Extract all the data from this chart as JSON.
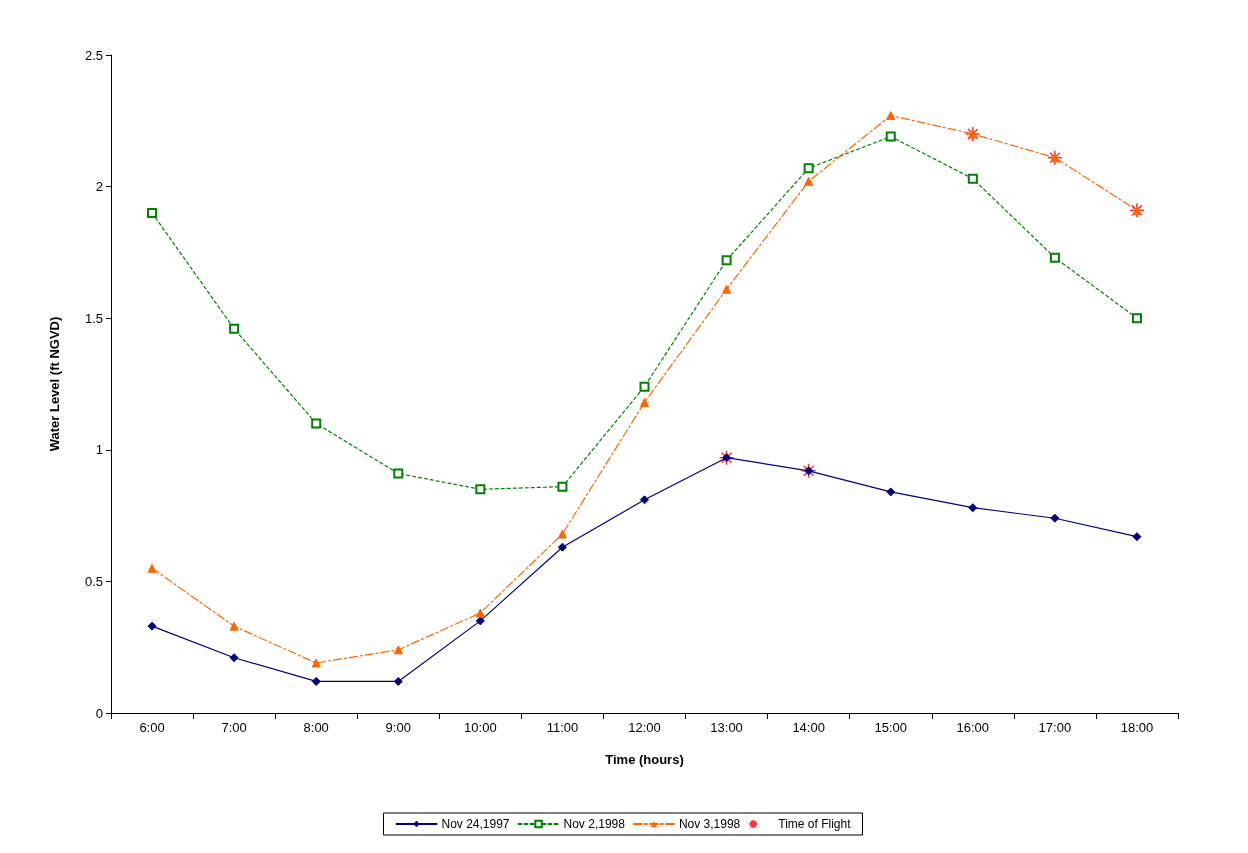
{
  "chart_data": {
    "type": "line",
    "xlabel": "Time (hours)",
    "ylabel": "Water Level (ft NGVD)",
    "categories": [
      "6:00",
      "7:00",
      "8:00",
      "9:00",
      "10:00",
      "11:00",
      "12:00",
      "13:00",
      "14:00",
      "15:00",
      "16:00",
      "17:00",
      "18:00"
    ],
    "series": [
      {
        "name": "Nov 24,1997",
        "color": "#000080",
        "marker": "diamond",
        "line_style": "solid",
        "values": [
          0.33,
          0.21,
          0.12,
          0.12,
          0.35,
          0.63,
          0.81,
          0.97,
          0.92,
          0.84,
          0.78,
          0.74,
          0.67
        ]
      },
      {
        "name": "Nov 2,1998",
        "color": "#008000",
        "marker": "square",
        "line_style": "dotted",
        "values": [
          1.9,
          1.46,
          1.1,
          0.91,
          0.85,
          0.86,
          1.24,
          1.72,
          2.07,
          2.19,
          2.03,
          1.73,
          1.5
        ]
      },
      {
        "name": "Nov 3,1998",
        "color": "#ff6600",
        "marker": "triangle",
        "line_style": "dashed",
        "values": [
          0.55,
          0.33,
          0.19,
          0.24,
          0.38,
          0.68,
          1.18,
          1.61,
          2.02,
          2.27,
          2.2,
          2.11,
          1.91
        ]
      },
      {
        "name": "Time of Flight",
        "type": "scatter",
        "color": "#ff0000",
        "marker": "cross",
        "x": [
          "13:00",
          "14:00",
          "16:00",
          "17:00",
          "18:00"
        ],
        "values": [
          0.97,
          0.92,
          2.2,
          2.11,
          1.91
        ]
      }
    ],
    "ylim": [
      0,
      2.5
    ],
    "yticks": [
      0,
      0.5,
      1,
      1.5,
      2,
      2.5
    ],
    "grid": false,
    "legend": "bottom"
  }
}
